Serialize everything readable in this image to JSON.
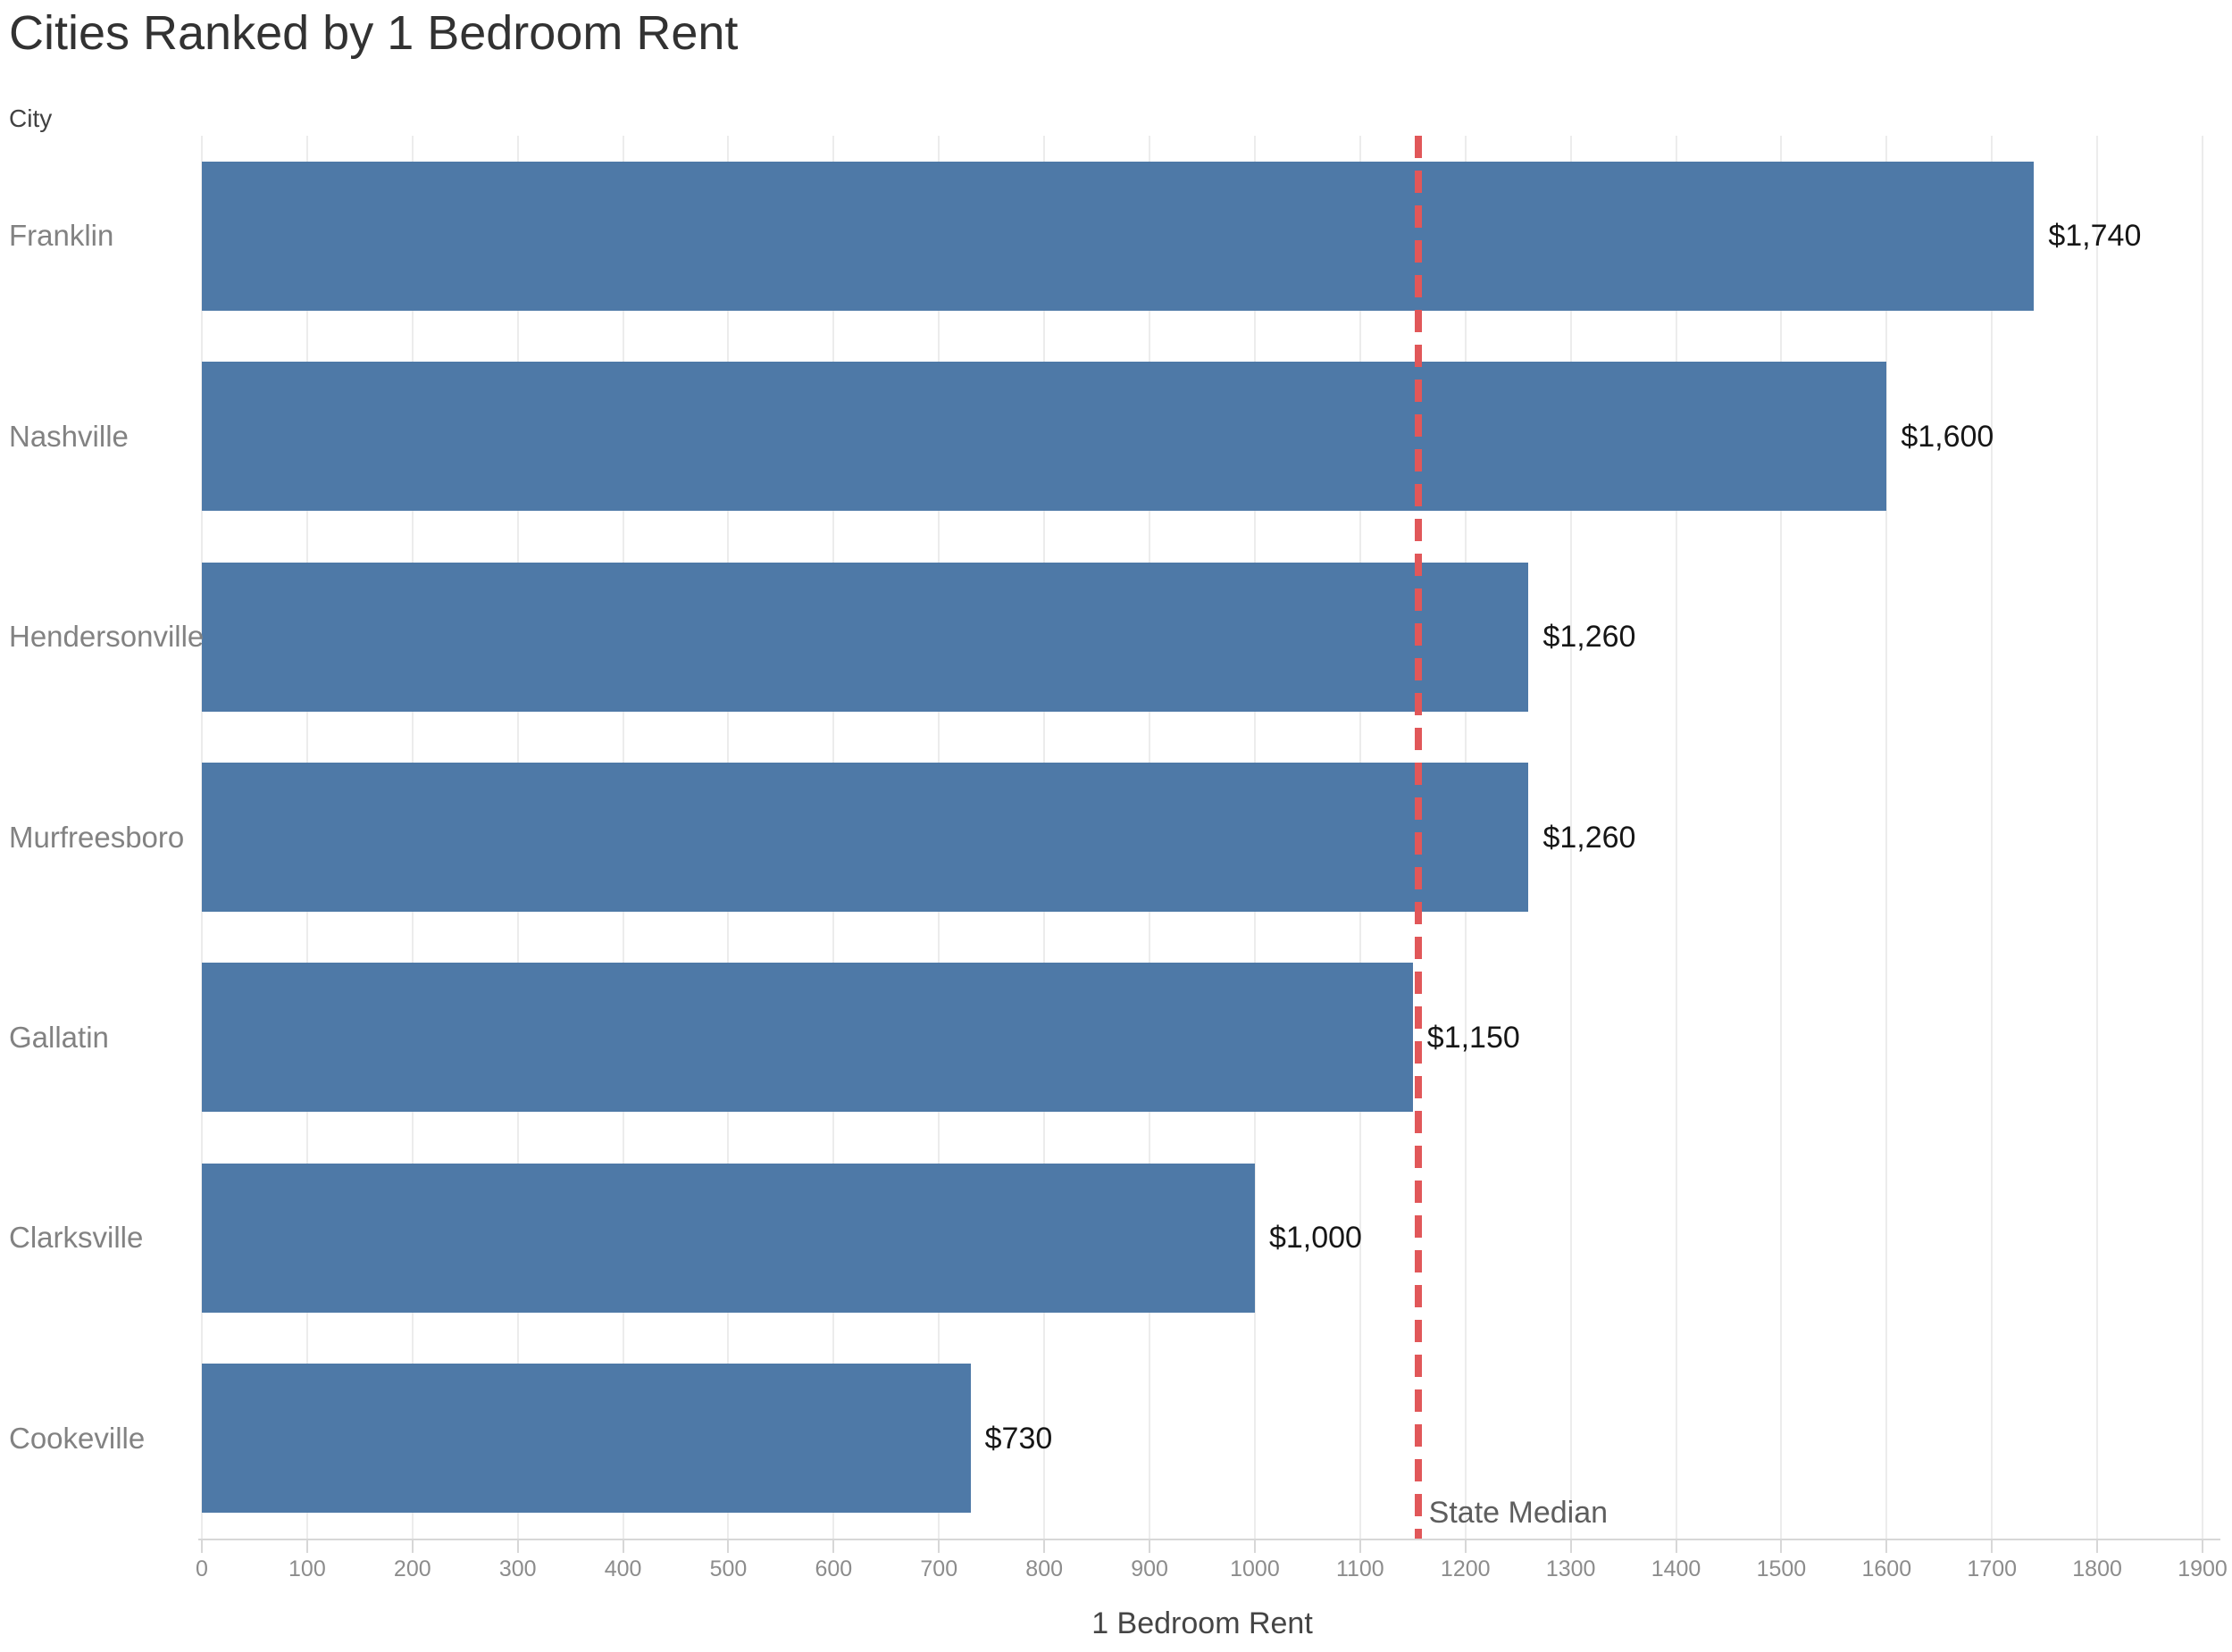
{
  "title": "Cities Ranked by 1 Bedroom Rent",
  "chart_data": {
    "type": "bar",
    "orientation": "horizontal",
    "title": "Cities Ranked by 1 Bedroom Rent",
    "xlabel": "1 Bedroom Rent",
    "ylabel": "City",
    "categories": [
      "Franklin",
      "Nashville",
      "Hendersonville",
      "Murfreesboro",
      "Gallatin",
      "Clarksville",
      "Cookeville"
    ],
    "values": [
      1740,
      1600,
      1260,
      1260,
      1150,
      1000,
      730
    ],
    "value_labels": [
      "$1,740",
      "$1,600",
      "$1,260",
      "$1,260",
      "$1,150",
      "$1,000",
      "$730"
    ],
    "xlim": [
      0,
      1900
    ],
    "x_ticks": [
      0,
      100,
      200,
      300,
      400,
      500,
      600,
      700,
      800,
      900,
      1000,
      1100,
      1200,
      1300,
      1400,
      1500,
      1600,
      1700,
      1800,
      1900
    ],
    "grid": true,
    "legend": "none",
    "bar_color": "#4e79a7",
    "reference_line": {
      "label": "State Median",
      "value": 1155,
      "style": "dashed",
      "color": "#e15759"
    }
  }
}
